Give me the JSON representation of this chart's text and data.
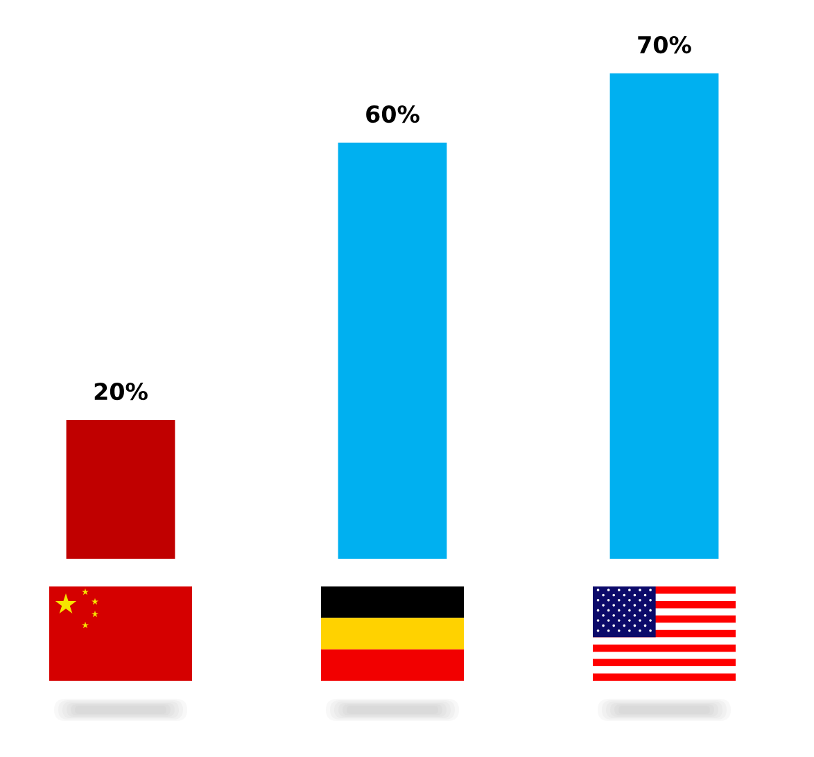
{
  "chart_data": {
    "type": "bar",
    "categories": [
      null,
      null,
      null
    ],
    "values": [
      20,
      60,
      70
    ],
    "colors": [
      "#c00000",
      "#00b0f0",
      "#00b0f0"
    ],
    "data_labels": true,
    "value_labels": [
      "20%",
      "60%",
      "70%"
    ]
  }
}
